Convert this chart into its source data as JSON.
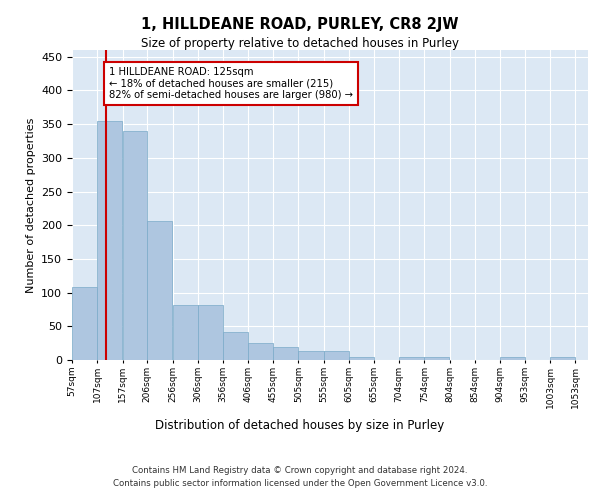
{
  "title": "1, HILLDEANE ROAD, PURLEY, CR8 2JW",
  "subtitle": "Size of property relative to detached houses in Purley",
  "xlabel": "Distribution of detached houses by size in Purley",
  "ylabel": "Number of detached properties",
  "footer_line1": "Contains HM Land Registry data © Crown copyright and database right 2024.",
  "footer_line2": "Contains public sector information licensed under the Open Government Licence v3.0.",
  "annotation_line1": "1 HILLDEANE ROAD: 125sqm",
  "annotation_line2": "← 18% of detached houses are smaller (215)",
  "annotation_line3": "82% of semi-detached houses are larger (980) →",
  "property_size": 125,
  "bar_left_edges": [
    57,
    107,
    157,
    206,
    256,
    306,
    356,
    406,
    455,
    505,
    555,
    605,
    655,
    704,
    754,
    804,
    854,
    904,
    953,
    1003
  ],
  "bar_widths": [
    50,
    50,
    49,
    50,
    50,
    50,
    50,
    49,
    50,
    50,
    50,
    50,
    49,
    50,
    50,
    50,
    50,
    49,
    50,
    50
  ],
  "bar_heights": [
    108,
    355,
    340,
    207,
    82,
    82,
    42,
    25,
    20,
    14,
    14,
    5,
    0,
    5,
    5,
    0,
    0,
    5,
    0,
    5
  ],
  "bar_color": "#aec6e0",
  "bar_edgecolor": "#7aaac8",
  "red_line_color": "#cc0000",
  "annotation_box_color": "#ffffff",
  "annotation_box_edgecolor": "#cc0000",
  "ylim": [
    0,
    460
  ],
  "background_color": "#dce8f4",
  "grid_color": "#ffffff",
  "tick_labels": [
    "57sqm",
    "107sqm",
    "157sqm",
    "206sqm",
    "256sqm",
    "306sqm",
    "356sqm",
    "406sqm",
    "455sqm",
    "505sqm",
    "555sqm",
    "605sqm",
    "655sqm",
    "704sqm",
    "754sqm",
    "804sqm",
    "854sqm",
    "904sqm",
    "953sqm",
    "1003sqm",
    "1053sqm"
  ]
}
